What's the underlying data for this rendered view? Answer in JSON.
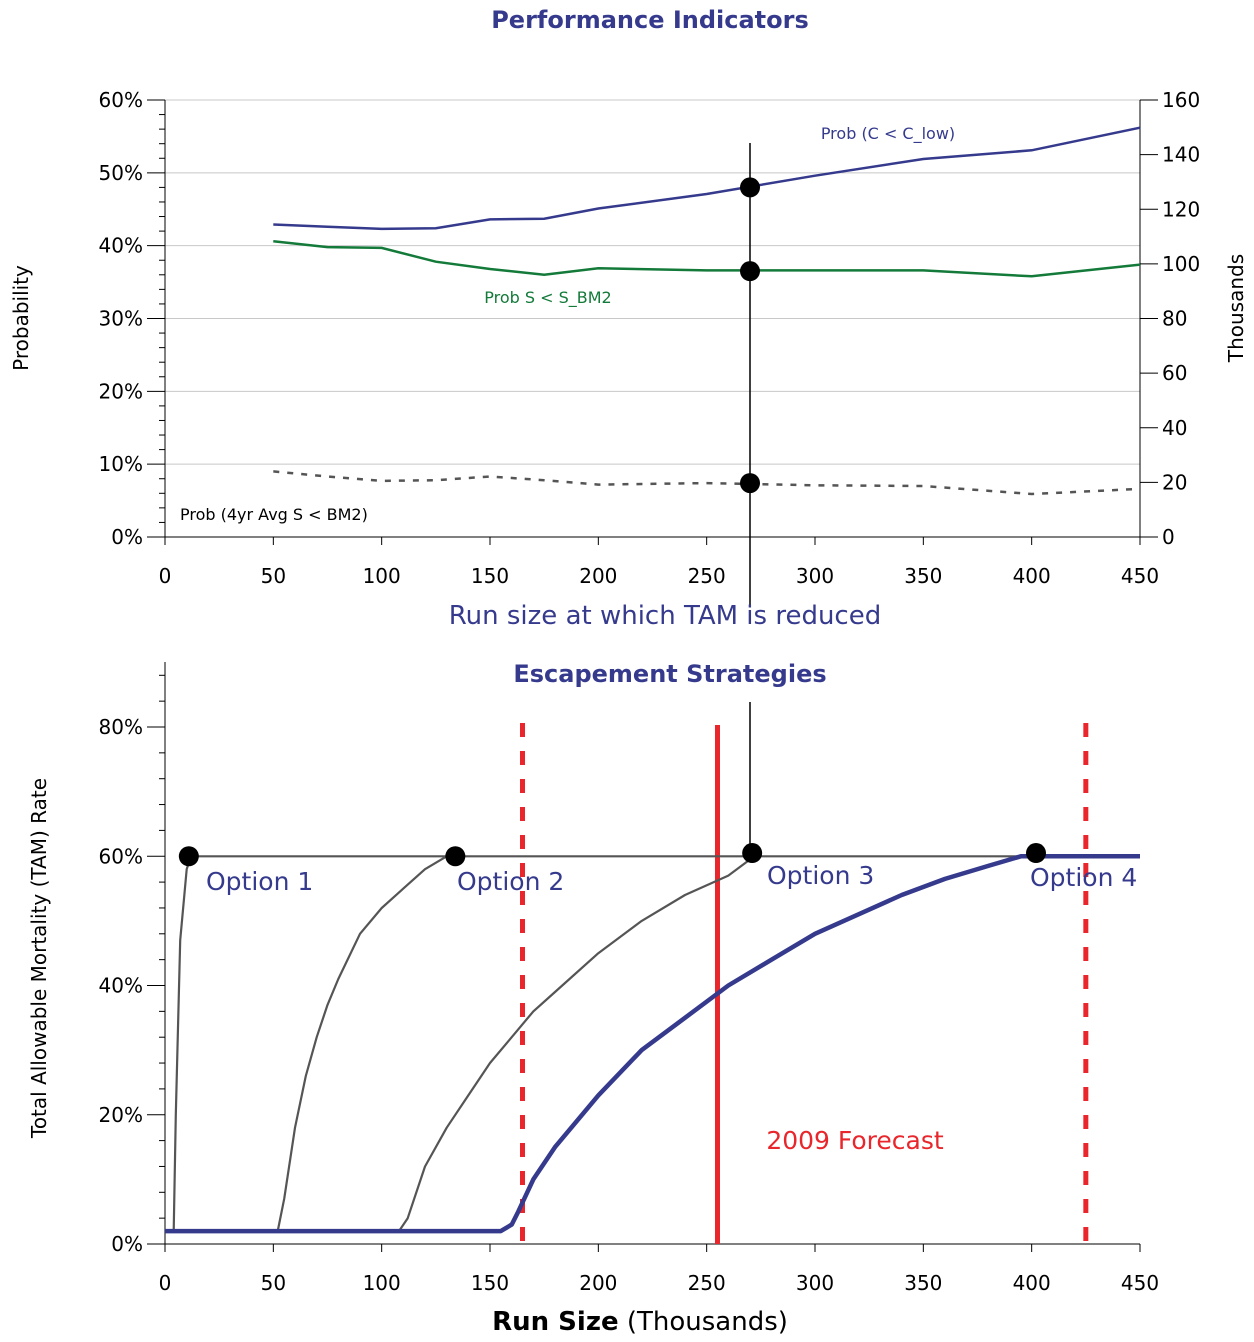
{
  "chart_data": [
    {
      "type": "line",
      "title": "Performance Indicators",
      "xlabel": "Run size at which TAM is reduced",
      "ylabel": "Probability",
      "y2label": "Thousands",
      "xlim": [
        0,
        450
      ],
      "ylim": [
        0,
        60
      ],
      "y2lim": [
        0,
        160
      ],
      "xticks": [
        "0",
        "50",
        "100",
        "150",
        "200",
        "250",
        "300",
        "350",
        "400",
        "450"
      ],
      "yticks": [
        "0%",
        "10%",
        "20%",
        "30%",
        "40%",
        "50%",
        "60%"
      ],
      "y2ticks": [
        "0",
        "20",
        "40",
        "60",
        "80",
        "100",
        "120",
        "140",
        "160"
      ],
      "grid": true,
      "series": [
        {
          "name": "Prob (C < C_low)",
          "color": "#353a8d",
          "style": "solid",
          "x": [
            50,
            75,
            100,
            125,
            150,
            175,
            200,
            250,
            300,
            350,
            400,
            450
          ],
          "y": [
            42.9,
            42.6,
            42.3,
            42.4,
            43.6,
            43.7,
            45.1,
            47.1,
            49.6,
            51.9,
            53.1,
            56.2
          ]
        },
        {
          "name": "Prob S < S_BM2",
          "color": "#137a3a",
          "style": "solid",
          "x": [
            50,
            75,
            100,
            125,
            150,
            175,
            200,
            250,
            300,
            350,
            400,
            450
          ],
          "y": [
            40.6,
            39.8,
            39.7,
            37.8,
            36.8,
            36.0,
            36.9,
            36.6,
            36.6,
            36.6,
            35.8,
            37.4
          ]
        },
        {
          "name": "Prob (4yr Avg S < BM2)",
          "color": "#555555",
          "style": "dashed",
          "x": [
            50,
            75,
            100,
            125,
            150,
            175,
            200,
            250,
            300,
            350,
            400,
            450
          ],
          "y": [
            9.0,
            8.3,
            7.7,
            7.8,
            8.3,
            7.8,
            7.2,
            7.4,
            7.1,
            7.0,
            5.9,
            6.6
          ]
        }
      ],
      "marker_x": 270,
      "markers": [
        {
          "x": 270,
          "y": 48.0
        },
        {
          "x": 270,
          "y": 36.5
        },
        {
          "x": 270,
          "y": 7.4
        }
      ]
    },
    {
      "type": "line",
      "title": "Escapement Strategies",
      "xlabel_bold": "Run Size",
      "xlabel_rest": " (Thousands)",
      "ylabel": "Total Allowable Mortality (TAM) Rate",
      "xlim": [
        0,
        450
      ],
      "ylim": [
        0,
        80
      ],
      "xticks": [
        "0",
        "50",
        "100",
        "150",
        "200",
        "250",
        "300",
        "350",
        "400",
        "450"
      ],
      "yticks": [
        "0%",
        "20%",
        "40%",
        "60%",
        "80%"
      ],
      "grid": false,
      "series": [
        {
          "name": "Option 1",
          "color": "#555555",
          "x": [
            0,
            4,
            5,
            7,
            10,
            12,
            450
          ],
          "y": [
            2,
            2,
            20,
            47,
            58,
            60,
            60
          ]
        },
        {
          "name": "Option 2",
          "color": "#555555",
          "x": [
            52,
            55,
            60,
            65,
            70,
            75,
            80,
            90,
            100,
            110,
            120,
            130
          ],
          "y": [
            2,
            7,
            18,
            26,
            32,
            37,
            41,
            48,
            52,
            55,
            58,
            60
          ]
        },
        {
          "name": "Option 3",
          "color": "#555555",
          "x": [
            108,
            112,
            120,
            130,
            140,
            150,
            160,
            170,
            180,
            200,
            220,
            240,
            260,
            272
          ],
          "y": [
            2,
            4,
            12,
            18,
            23,
            28,
            32,
            36,
            39,
            45,
            50,
            54,
            57,
            60
          ]
        },
        {
          "name": "Option 4",
          "color": "#353a8d",
          "x": [
            0,
            155,
            160,
            163,
            170,
            180,
            200,
            220,
            240,
            260,
            280,
            300,
            320,
            340,
            360,
            380,
            395,
            450
          ],
          "y": [
            2,
            2,
            3,
            5,
            10,
            15,
            23,
            30,
            35,
            40,
            44,
            48,
            51,
            54,
            56.5,
            58.5,
            60,
            60
          ]
        }
      ],
      "option_markers": [
        {
          "label": "Option 1",
          "x": 11,
          "y": 60
        },
        {
          "label": "Option 2",
          "x": 134,
          "y": 60
        },
        {
          "label": "Option 3",
          "x": 271,
          "y": 60.5
        },
        {
          "label": "Option 4",
          "x": 402,
          "y": 60.5
        }
      ],
      "forecast": {
        "label": "2009 Forecast",
        "x": 255,
        "color": "#e8262b"
      },
      "bounds": [
        165,
        425
      ]
    }
  ]
}
